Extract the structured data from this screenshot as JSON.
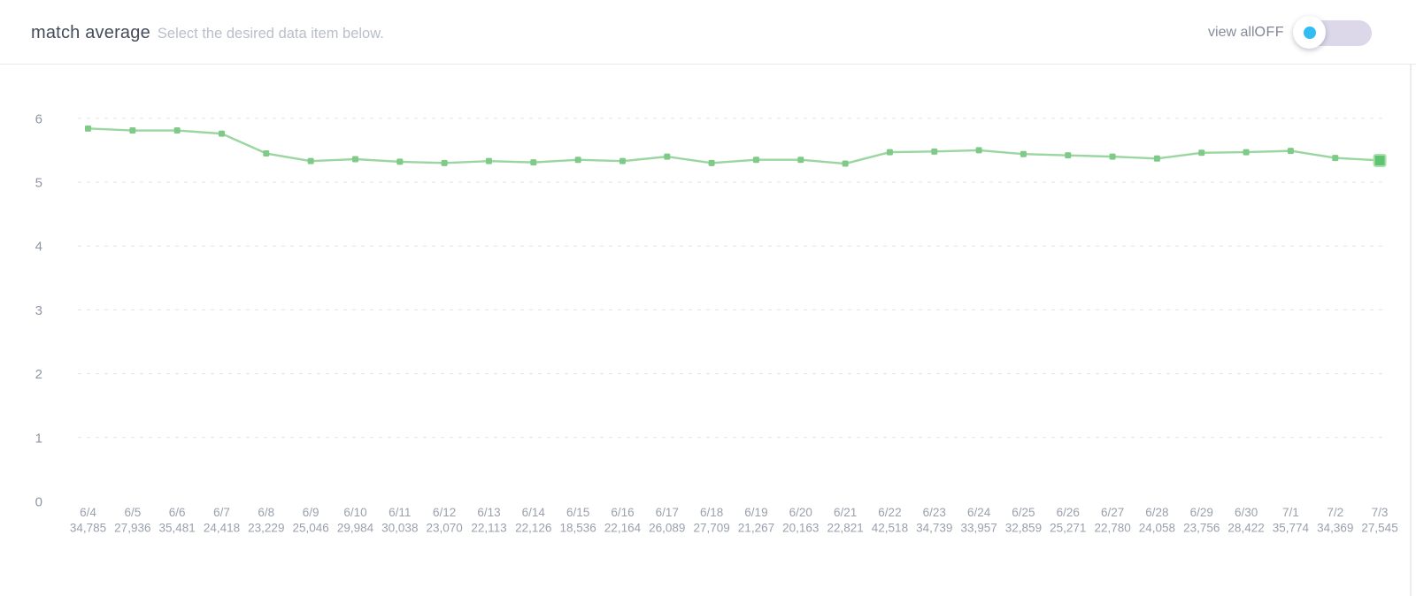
{
  "header": {
    "title": "match average",
    "subtitle": "Select the desired data item below."
  },
  "controls": {
    "view_all_label": "view all",
    "state_label": "OFF",
    "toggle_state": "off",
    "accent_color": "#32bcf1",
    "track_color": "#dcd8ea"
  },
  "chart_data": {
    "type": "line",
    "title": "match average",
    "x": [
      "6/4",
      "6/5",
      "6/6",
      "6/7",
      "6/8",
      "6/9",
      "6/10",
      "6/11",
      "6/12",
      "6/13",
      "6/14",
      "6/15",
      "6/16",
      "6/17",
      "6/18",
      "6/19",
      "6/20",
      "6/21",
      "6/22",
      "6/23",
      "6/24",
      "6/25",
      "6/26",
      "6/27",
      "6/28",
      "6/29",
      "6/30",
      "7/1",
      "7/2",
      "7/3"
    ],
    "x_sub_labels": [
      "34,785",
      "27,936",
      "35,481",
      "24,418",
      "23,229",
      "25,046",
      "29,984",
      "30,038",
      "23,070",
      "22,113",
      "22,126",
      "18,536",
      "22,164",
      "26,089",
      "27,709",
      "21,267",
      "20,163",
      "22,821",
      "42,518",
      "34,739",
      "33,957",
      "32,859",
      "25,271",
      "22,780",
      "24,058",
      "23,756",
      "28,422",
      "35,774",
      "34,369",
      "27,545"
    ],
    "series": [
      {
        "name": "match average",
        "values": [
          5.84,
          5.81,
          5.81,
          5.76,
          5.45,
          5.33,
          5.36,
          5.32,
          5.3,
          5.33,
          5.31,
          5.35,
          5.33,
          5.4,
          5.3,
          5.35,
          5.35,
          5.29,
          5.47,
          5.48,
          5.5,
          5.44,
          5.42,
          5.4,
          5.37,
          5.46,
          5.47,
          5.49,
          5.38,
          5.34
        ]
      }
    ],
    "y_ticks": [
      0,
      1,
      2,
      3,
      4,
      5,
      6
    ],
    "ylim": [
      0,
      6.85
    ],
    "grid": "horizontal-dashed, no gridline at 0, no axis lines",
    "legend": "none",
    "line_color": "#9ad69f",
    "marker_color": "#80ca88",
    "last_marker_color": "#5fc46f",
    "gridline_color": "#e3e3e9",
    "axis_label_color": "#8f96a4",
    "x_label_color": "#9aa1ad"
  }
}
